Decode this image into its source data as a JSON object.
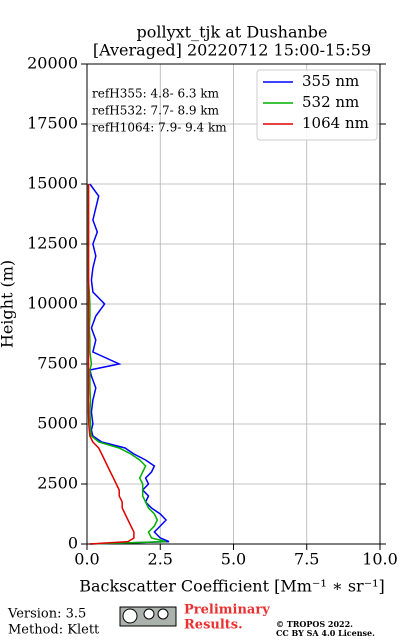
{
  "chart_data": {
    "type": "line",
    "title": "pollyxt_tjk at Dushanbe",
    "subtitle": "[Averaged] 20220712 15:00-15:59",
    "xlabel": "Backscatter Coefficient [Mm⁻¹ ∗ sr⁻¹]",
    "ylabel": "Height (m)",
    "annotations": [
      "refH355:  4.8- 6.3 km",
      "refH532:  7.7- 8.9 km",
      "refH1064:  7.9- 9.4 km"
    ],
    "legend": "upper right",
    "grid": true,
    "xlim": [
      0,
      10
    ],
    "xticks": [
      {
        "value": 0,
        "label": "0.0"
      },
      2.5,
      {
        "value": 5,
        "label": "5.0"
      },
      7.5,
      {
        "value": 10,
        "label": "10.0"
      }
    ],
    "ylim": [
      0,
      20000
    ],
    "yticks": [
      0,
      2500,
      5000,
      7500,
      10000,
      12500,
      15000,
      17500,
      20000
    ],
    "y": [
      0,
      100,
      250,
      500,
      750,
      1000,
      1250,
      1500,
      1750,
      2000,
      2250,
      2500,
      2750,
      3000,
      3250,
      3500,
      3750,
      4000,
      4250,
      4500,
      4750,
      5000,
      5500,
      6000,
      6500,
      7000,
      7250,
      7500,
      8000,
      8500,
      9000,
      9500,
      10000,
      10500,
      11000,
      11500,
      12000,
      12500,
      13000,
      13500,
      14000,
      14500,
      15000
    ],
    "series": [
      {
        "name": "355 nm",
        "color": "#0000ff",
        "values": [
          0.1,
          2.8,
          2.5,
          2.3,
          2.5,
          2.7,
          2.5,
          2.2,
          2.0,
          2.1,
          1.9,
          2.1,
          2.0,
          2.2,
          2.3,
          2.0,
          1.6,
          1.3,
          0.5,
          0.2,
          0.15,
          0.2,
          0.15,
          0.2,
          0.3,
          0.15,
          0.1,
          1.1,
          0.2,
          0.3,
          0.15,
          0.3,
          0.6,
          0.2,
          0.15,
          0.2,
          0.3,
          0.2,
          0.35,
          0.2,
          0.3,
          0.4,
          0.1
        ]
      },
      {
        "name": "532 nm",
        "color": "#00b000",
        "values": [
          0.1,
          2.7,
          2.2,
          2.1,
          2.3,
          2.4,
          2.3,
          2.1,
          2.0,
          1.9,
          1.9,
          1.9,
          1.8,
          1.9,
          2.0,
          1.8,
          1.5,
          1.1,
          0.4,
          0.15,
          0.12,
          0.12,
          0.1,
          0.12,
          0.1,
          0.1,
          0.1,
          0.15,
          0.1,
          0.1,
          0.08,
          0.1,
          0.1,
          0.08,
          0.05,
          0.05,
          0.05,
          0.05,
          0.05,
          0.05,
          0.05,
          0.05,
          0.05
        ]
      },
      {
        "name": "1064 nm",
        "color": "#e00000",
        "values": [
          0.1,
          1.4,
          1.6,
          1.6,
          1.5,
          1.4,
          1.3,
          1.2,
          1.2,
          1.1,
          1.1,
          1.0,
          0.9,
          0.8,
          0.7,
          0.6,
          0.5,
          0.4,
          0.2,
          0.1,
          0.08,
          0.06,
          0.05,
          0.05,
          0.05,
          0.05,
          0.05,
          0.05,
          0.05,
          0.05,
          0.05,
          0.05,
          0.05,
          0.05,
          0.05,
          0.05,
          0.05,
          0.05,
          0.05,
          0.05,
          0.05,
          0.05,
          0.05
        ]
      }
    ]
  },
  "footer": {
    "version": "Version: 3.5",
    "method": "Method: Klett",
    "notice": [
      "Preliminary",
      "Results."
    ],
    "license": [
      "© TROPOS 2022.",
      "CC BY SA 4.0 License."
    ]
  }
}
